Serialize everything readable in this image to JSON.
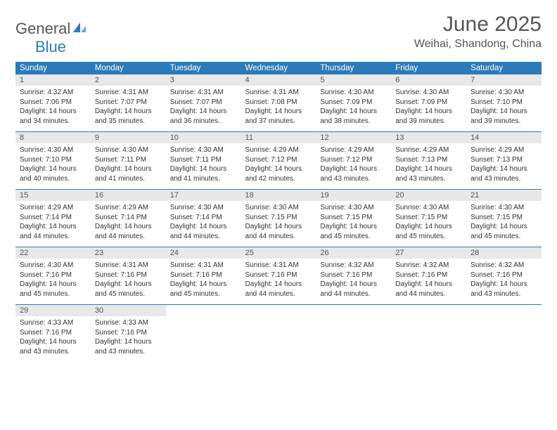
{
  "logo": {
    "text1": "General",
    "text2": "Blue",
    "color1": "#555555",
    "color2": "#2b7bba"
  },
  "title": "June 2025",
  "location": "Weihai, Shandong, China",
  "dow_bg": "#2b7bba",
  "daynum_bg": "#e8e8e8",
  "dow": [
    "Sunday",
    "Monday",
    "Tuesday",
    "Wednesday",
    "Thursday",
    "Friday",
    "Saturday"
  ],
  "days": [
    {
      "n": 1,
      "sr": "4:32 AM",
      "ss": "7:06 PM",
      "dh": 14,
      "dm": 34
    },
    {
      "n": 2,
      "sr": "4:31 AM",
      "ss": "7:07 PM",
      "dh": 14,
      "dm": 35
    },
    {
      "n": 3,
      "sr": "4:31 AM",
      "ss": "7:07 PM",
      "dh": 14,
      "dm": 36
    },
    {
      "n": 4,
      "sr": "4:31 AM",
      "ss": "7:08 PM",
      "dh": 14,
      "dm": 37
    },
    {
      "n": 5,
      "sr": "4:30 AM",
      "ss": "7:09 PM",
      "dh": 14,
      "dm": 38
    },
    {
      "n": 6,
      "sr": "4:30 AM",
      "ss": "7:09 PM",
      "dh": 14,
      "dm": 39
    },
    {
      "n": 7,
      "sr": "4:30 AM",
      "ss": "7:10 PM",
      "dh": 14,
      "dm": 39
    },
    {
      "n": 8,
      "sr": "4:30 AM",
      "ss": "7:10 PM",
      "dh": 14,
      "dm": 40
    },
    {
      "n": 9,
      "sr": "4:30 AM",
      "ss": "7:11 PM",
      "dh": 14,
      "dm": 41
    },
    {
      "n": 10,
      "sr": "4:30 AM",
      "ss": "7:11 PM",
      "dh": 14,
      "dm": 41
    },
    {
      "n": 11,
      "sr": "4:29 AM",
      "ss": "7:12 PM",
      "dh": 14,
      "dm": 42
    },
    {
      "n": 12,
      "sr": "4:29 AM",
      "ss": "7:12 PM",
      "dh": 14,
      "dm": 43
    },
    {
      "n": 13,
      "sr": "4:29 AM",
      "ss": "7:13 PM",
      "dh": 14,
      "dm": 43
    },
    {
      "n": 14,
      "sr": "4:29 AM",
      "ss": "7:13 PM",
      "dh": 14,
      "dm": 43
    },
    {
      "n": 15,
      "sr": "4:29 AM",
      "ss": "7:14 PM",
      "dh": 14,
      "dm": 44
    },
    {
      "n": 16,
      "sr": "4:29 AM",
      "ss": "7:14 PM",
      "dh": 14,
      "dm": 44
    },
    {
      "n": 17,
      "sr": "4:30 AM",
      "ss": "7:14 PM",
      "dh": 14,
      "dm": 44
    },
    {
      "n": 18,
      "sr": "4:30 AM",
      "ss": "7:15 PM",
      "dh": 14,
      "dm": 44
    },
    {
      "n": 19,
      "sr": "4:30 AM",
      "ss": "7:15 PM",
      "dh": 14,
      "dm": 45
    },
    {
      "n": 20,
      "sr": "4:30 AM",
      "ss": "7:15 PM",
      "dh": 14,
      "dm": 45
    },
    {
      "n": 21,
      "sr": "4:30 AM",
      "ss": "7:15 PM",
      "dh": 14,
      "dm": 45
    },
    {
      "n": 22,
      "sr": "4:30 AM",
      "ss": "7:16 PM",
      "dh": 14,
      "dm": 45
    },
    {
      "n": 23,
      "sr": "4:31 AM",
      "ss": "7:16 PM",
      "dh": 14,
      "dm": 45
    },
    {
      "n": 24,
      "sr": "4:31 AM",
      "ss": "7:16 PM",
      "dh": 14,
      "dm": 45
    },
    {
      "n": 25,
      "sr": "4:31 AM",
      "ss": "7:16 PM",
      "dh": 14,
      "dm": 44
    },
    {
      "n": 26,
      "sr": "4:32 AM",
      "ss": "7:16 PM",
      "dh": 14,
      "dm": 44
    },
    {
      "n": 27,
      "sr": "4:32 AM",
      "ss": "7:16 PM",
      "dh": 14,
      "dm": 44
    },
    {
      "n": 28,
      "sr": "4:32 AM",
      "ss": "7:16 PM",
      "dh": 14,
      "dm": 43
    },
    {
      "n": 29,
      "sr": "4:33 AM",
      "ss": "7:16 PM",
      "dh": 14,
      "dm": 43
    },
    {
      "n": 30,
      "sr": "4:33 AM",
      "ss": "7:16 PM",
      "dh": 14,
      "dm": 43
    }
  ],
  "labels": {
    "sunrise": "Sunrise:",
    "sunset": "Sunset:",
    "daylight": "Daylight:",
    "hours": "hours",
    "and": "and",
    "minutes": "minutes."
  }
}
